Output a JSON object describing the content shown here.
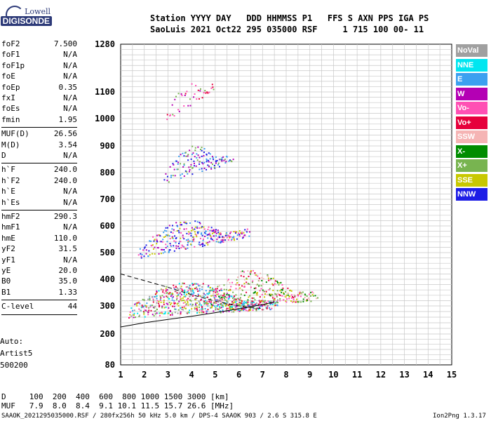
{
  "logo": {
    "line1": "Lowell",
    "line2": "DIGISONDE"
  },
  "header": {
    "labels": "Station YYYY DAY   DDD HHMMSS P1   FFS S AXN PPS IGA PS",
    "values": "SaoLuis 2021 Oct22 295 035000 RSF     1 715 100 00- 11"
  },
  "params": [
    {
      "name": "foF2",
      "value": "7.500",
      "sep": false
    },
    {
      "name": "foF1",
      "value": "N/A",
      "sep": false
    },
    {
      "name": "foF1p",
      "value": "N/A",
      "sep": false
    },
    {
      "name": "foE",
      "value": "N/A",
      "sep": false
    },
    {
      "name": "foEp",
      "value": "0.35",
      "sep": false
    },
    {
      "name": "fxI",
      "value": "N/A",
      "sep": false
    },
    {
      "name": "foEs",
      "value": "N/A",
      "sep": false
    },
    {
      "name": "fmin",
      "value": "1.95",
      "sep": true
    },
    {
      "name": "MUF(D)",
      "value": "26.56",
      "sep": false
    },
    {
      "name": "M(D)",
      "value": "3.54",
      "sep": false
    },
    {
      "name": "D",
      "value": "N/A",
      "sep": true
    },
    {
      "name": "h`F",
      "value": "240.0",
      "sep": false
    },
    {
      "name": "h`F2",
      "value": "240.0",
      "sep": false
    },
    {
      "name": "h`E",
      "value": "N/A",
      "sep": false
    },
    {
      "name": "h`Es",
      "value": "N/A",
      "sep": true
    },
    {
      "name": "hmF2",
      "value": "290.3",
      "sep": false
    },
    {
      "name": "hmF1",
      "value": "N/A",
      "sep": false
    },
    {
      "name": "hmE",
      "value": "110.0",
      "sep": false
    },
    {
      "name": "yF2",
      "value": "31.5",
      "sep": false
    },
    {
      "name": "yF1",
      "value": "N/A",
      "sep": false
    },
    {
      "name": "yE",
      "value": "20.0",
      "sep": false
    },
    {
      "name": "B0",
      "value": "35.0",
      "sep": false
    },
    {
      "name": "B1",
      "value": "1.33",
      "sep": true
    },
    {
      "name": "C-level",
      "value": "44",
      "sep": true
    }
  ],
  "auto": {
    "line1": "Auto:",
    "line2": "Artist5",
    "line3": "500200"
  },
  "legend": [
    {
      "label": "NoVal",
      "color": "#a0a0a0"
    },
    {
      "label": "NNE",
      "color": "#00e6f0"
    },
    {
      "label": "E",
      "color": "#3ca0f0"
    },
    {
      "label": "W",
      "color": "#b400b4"
    },
    {
      "label": "Vo-",
      "color": "#ff50b4"
    },
    {
      "label": "Vo+",
      "color": "#e6003c"
    },
    {
      "label": "SSW",
      "color": "#f5b4b4"
    },
    {
      "label": "X-",
      "color": "#008c00"
    },
    {
      "label": "X+",
      "color": "#78b450"
    },
    {
      "label": "SSE",
      "color": "#c8c800"
    },
    {
      "label": "NNW",
      "color": "#1e1ee6"
    }
  ],
  "bottom": {
    "d_line": "D     100  200  400  600  800 1000 1500 3000 [km]",
    "muf_line": "MUF   7.9  8.0  8.4  9.1 10.1 11.5 15.7 26.6 [MHz]"
  },
  "footer": {
    "text": "SAAOK_2021295035000.RSF / 280fx256h 50 kHz 5.0 km / DPS-4 SAAOK 903 / 2.6 S 315.8 E",
    "version": "Ion2Png 1.3.17"
  },
  "chart_data": {
    "type": "scatter",
    "xlim": [
      1,
      15
    ],
    "ylim": [
      80,
      1280
    ],
    "x_ticks": [
      "1",
      "2",
      "3",
      "4",
      "5",
      "6",
      "7",
      "8",
      "9",
      "10",
      "11",
      "12",
      "13",
      "14",
      "15"
    ],
    "y_ticks": [
      {
        "v": 80,
        "label": "80"
      },
      {
        "v": 200,
        "label": "200"
      },
      {
        "v": 300,
        "label": "300"
      },
      {
        "v": 400,
        "label": "400"
      },
      {
        "v": 500,
        "label": "500"
      },
      {
        "v": 600,
        "label": "600"
      },
      {
        "v": 700,
        "label": "700"
      },
      {
        "v": 800,
        "label": "800"
      },
      {
        "v": 900,
        "label": "900"
      },
      {
        "v": 1000,
        "label": "1000"
      },
      {
        "v": 1100,
        "label": "1100"
      },
      {
        "v": 1280,
        "label": "1280"
      }
    ],
    "grid": true,
    "clusters": [
      {
        "name": "F1-hop",
        "x": [
          1.3,
          7.6
        ],
        "h": [
          260,
          290
        ],
        "spread": 120,
        "density": 70,
        "colors": [
          "#00e6f0",
          "#3ca0f0",
          "#e6003c",
          "#ff50b4",
          "#a0a0a0",
          "#c8c800",
          "#78b450",
          "#b400b4"
        ]
      },
      {
        "name": "F1-upper",
        "x": [
          4.6,
          9.3
        ],
        "h": [
          300,
          320
        ],
        "spread": 130,
        "density": 40,
        "colors": [
          "#e6003c",
          "#ff50b4",
          "#c8c800",
          "#78b450",
          "#f5b4b4",
          "#008c00"
        ]
      },
      {
        "name": "F2-hop",
        "x": [
          1.7,
          6.4
        ],
        "h": [
          480,
          560
        ],
        "spread": 110,
        "density": 45,
        "colors": [
          "#1e1ee6",
          "#b400b4",
          "#3ca0f0",
          "#c8c800",
          "#ff50b4"
        ]
      },
      {
        "name": "F3-hop",
        "x": [
          2.8,
          5.7
        ],
        "h": [
          760,
          840
        ],
        "spread": 110,
        "density": 30,
        "colors": [
          "#1e1ee6",
          "#b400b4",
          "#3ca0f0",
          "#78b450"
        ]
      },
      {
        "name": "F4-hop",
        "x": [
          2.9,
          4.9
        ],
        "h": [
          990,
          1110
        ],
        "spread": 90,
        "density": 12,
        "colors": [
          "#b400b4",
          "#e6003c",
          "#78b450",
          "#ff50b4"
        ]
      }
    ],
    "curves": [
      {
        "name": "profile-solid",
        "style": "solid",
        "points": [
          [
            1,
            225
          ],
          [
            2,
            240
          ],
          [
            3,
            252
          ],
          [
            4,
            263
          ],
          [
            5,
            276
          ],
          [
            6,
            290
          ],
          [
            7,
            305
          ],
          [
            7.5,
            315
          ]
        ]
      },
      {
        "name": "profile-dashed",
        "style": "dashed",
        "points": [
          [
            1,
            420
          ],
          [
            2,
            395
          ],
          [
            3,
            370
          ],
          [
            4,
            342
          ],
          [
            5,
            318
          ],
          [
            6,
            300
          ],
          [
            7,
            290
          ]
        ]
      }
    ]
  }
}
